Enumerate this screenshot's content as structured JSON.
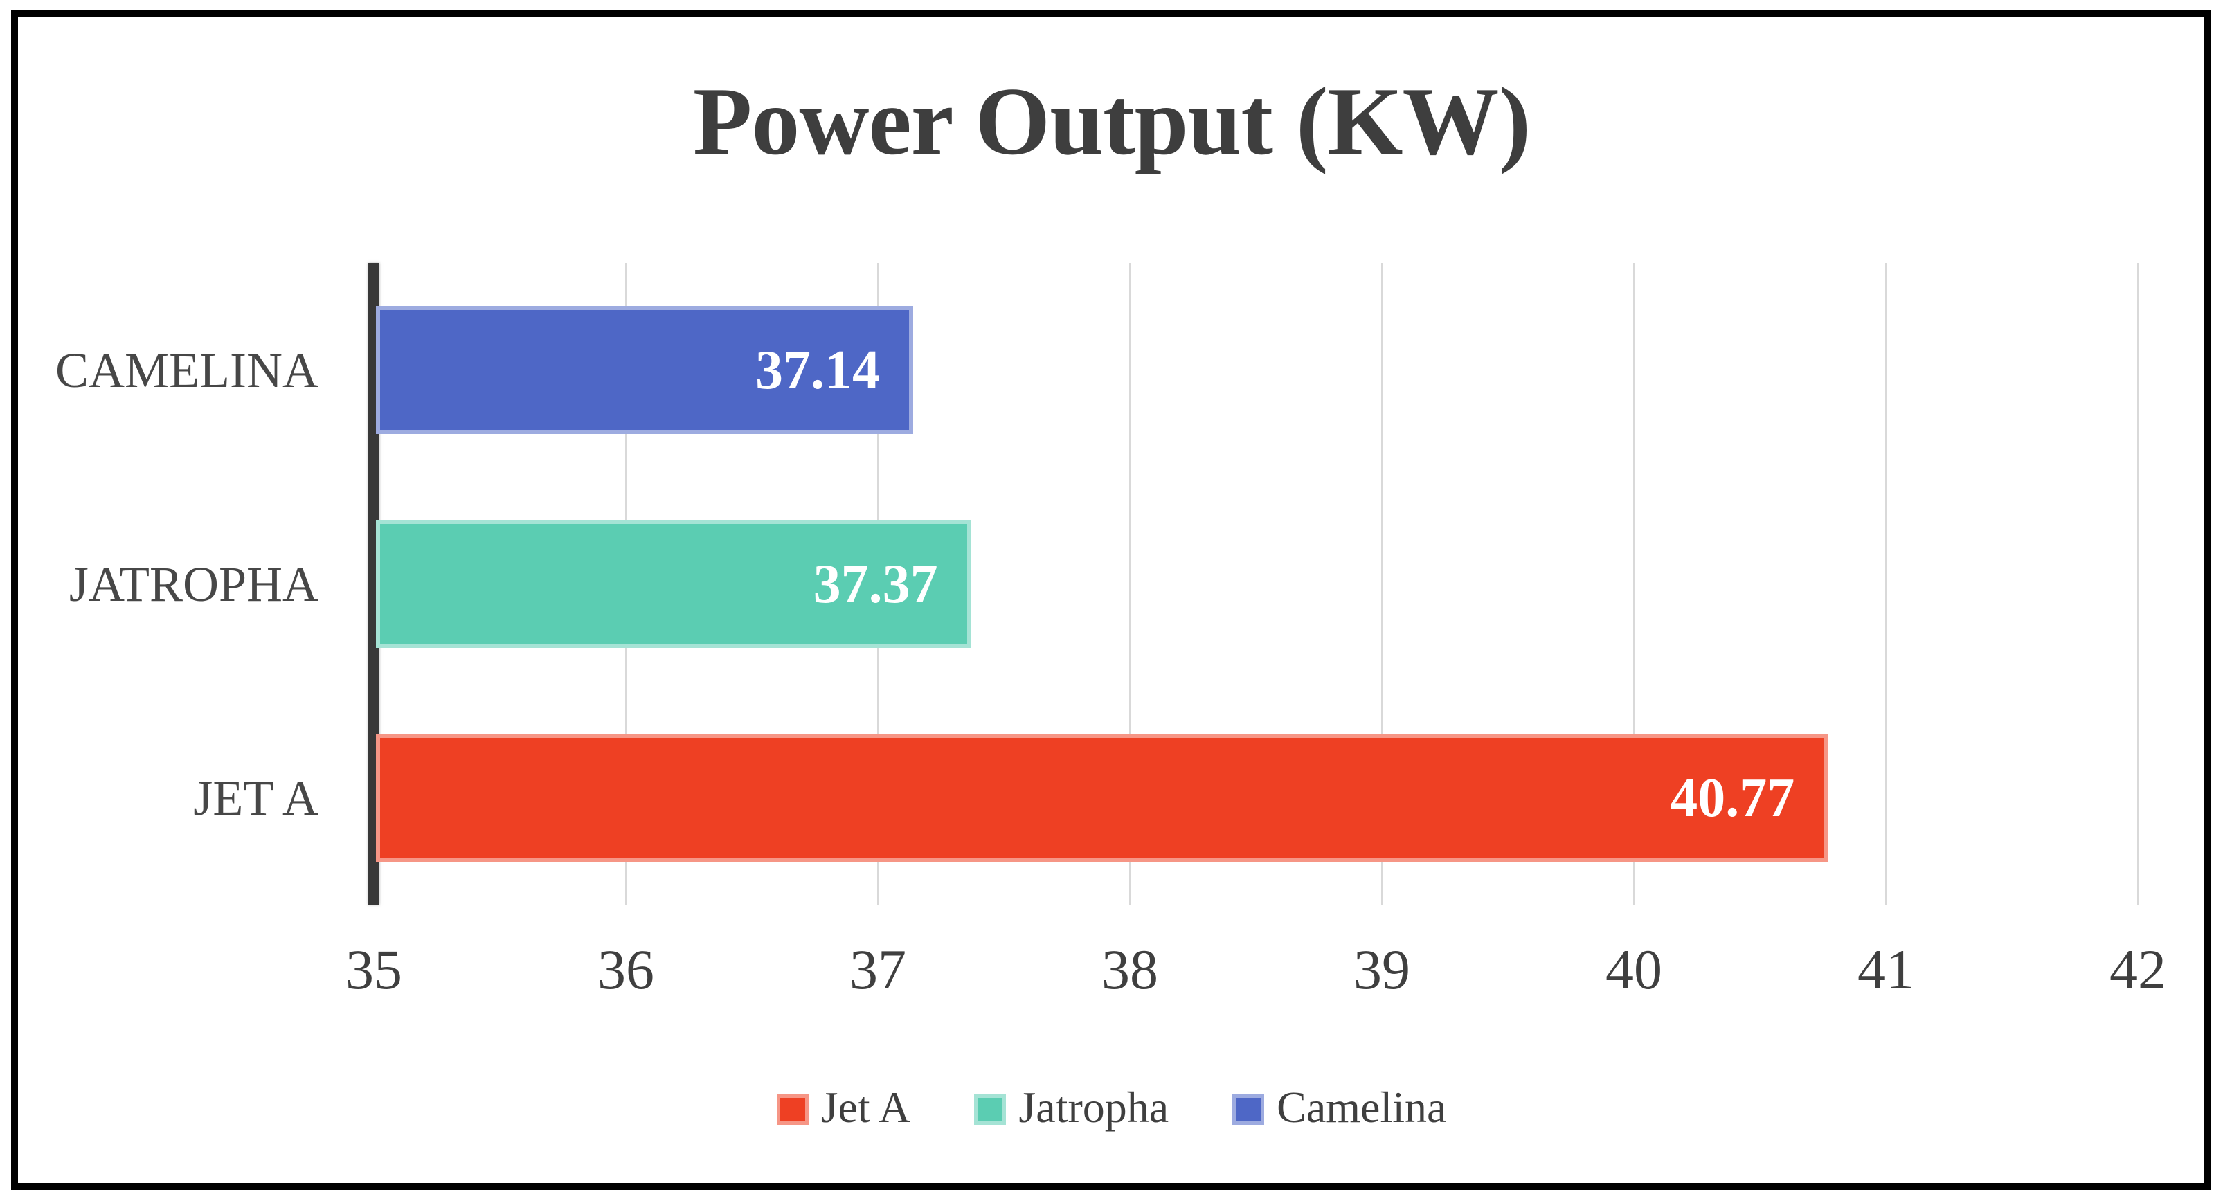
{
  "frame": {
    "border_color": "#000000",
    "background": "#ffffff"
  },
  "chart_data": {
    "type": "bar",
    "orientation": "horizontal",
    "title": "Power Output (KW)",
    "categories": [
      "CAMELINA",
      "JATROPHA",
      "JET A"
    ],
    "values": [
      37.14,
      37.37,
      40.77
    ],
    "value_labels": [
      "37.14",
      "37.37",
      "40.77"
    ],
    "bar_colors": [
      "#4e67c6",
      "#5bcdb2",
      "#ee4023"
    ],
    "xlabel": "",
    "ylabel": "",
    "xlim": [
      35,
      42
    ],
    "x_ticks": [
      "35",
      "36",
      "37",
      "38",
      "39",
      "40",
      "41",
      "42"
    ],
    "grid": true,
    "gridline_color": "#d9d9d9",
    "axis_line_color": "#383838",
    "value_label_color": "#ffffff",
    "text_color": "#3f3f3f",
    "legend": {
      "position": "bottom",
      "entries": [
        {
          "label": "Jet A",
          "color": "#ee4023"
        },
        {
          "label": "Jatropha",
          "color": "#5bcdb2"
        },
        {
          "label": "Camelina",
          "color": "#4e67c6"
        }
      ]
    }
  }
}
